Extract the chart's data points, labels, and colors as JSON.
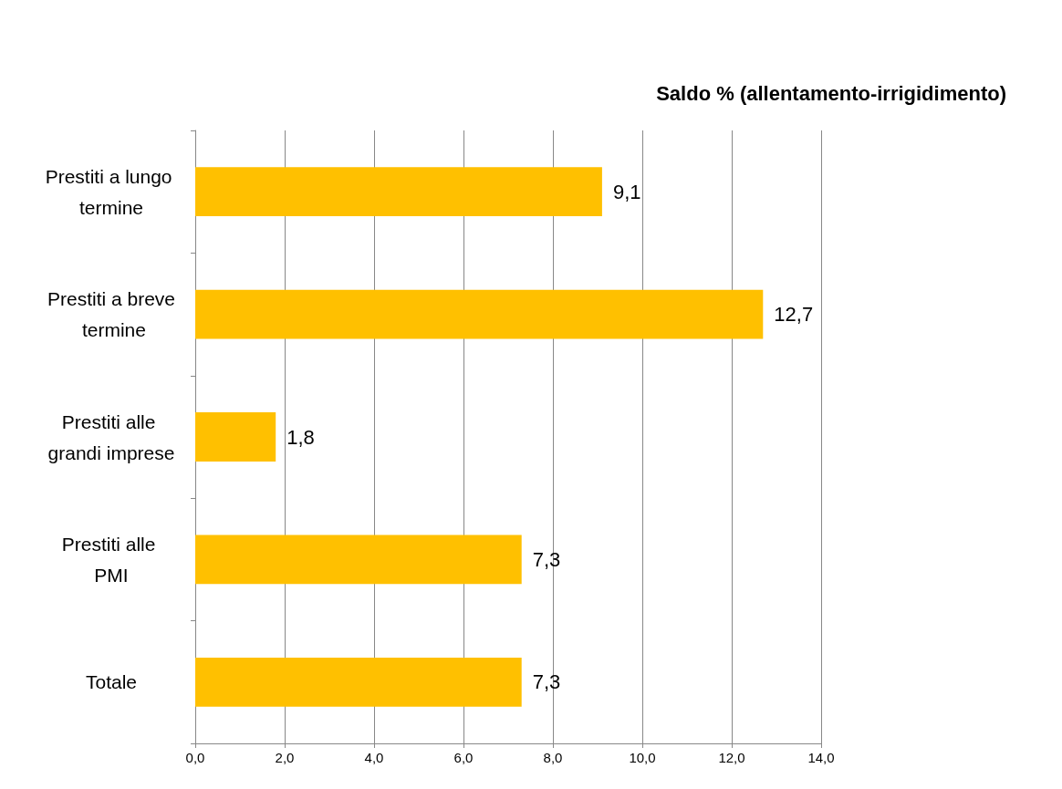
{
  "chart_data": {
    "type": "bar",
    "orientation": "horizontal",
    "title": "Saldo % (allentamento-irrigidimento)",
    "categories": [
      "Prestiti a lungo termine",
      "Prestiti a breve termine",
      "Prestiti alle grandi imprese",
      "Prestiti alle PMI",
      "Totale"
    ],
    "values": [
      9.1,
      12.7,
      1.8,
      7.3,
      7.3
    ],
    "value_labels": [
      "9,1",
      "12,7",
      "1,8",
      "7,3",
      "7,3"
    ],
    "color": "#ffc000",
    "xlim": [
      0,
      14
    ],
    "xticks": [
      {
        "value": 0,
        "label": "0,0"
      },
      {
        "value": 2,
        "label": "2,0"
      },
      {
        "value": 4,
        "label": "4,0"
      },
      {
        "value": 6,
        "label": "6,0"
      },
      {
        "value": 8,
        "label": "8,0"
      },
      {
        "value": 10,
        "label": "10,0"
      },
      {
        "value": 12,
        "label": "12,0"
      },
      {
        "value": 14,
        "label": "14,0"
      }
    ],
    "grid": "x"
  }
}
